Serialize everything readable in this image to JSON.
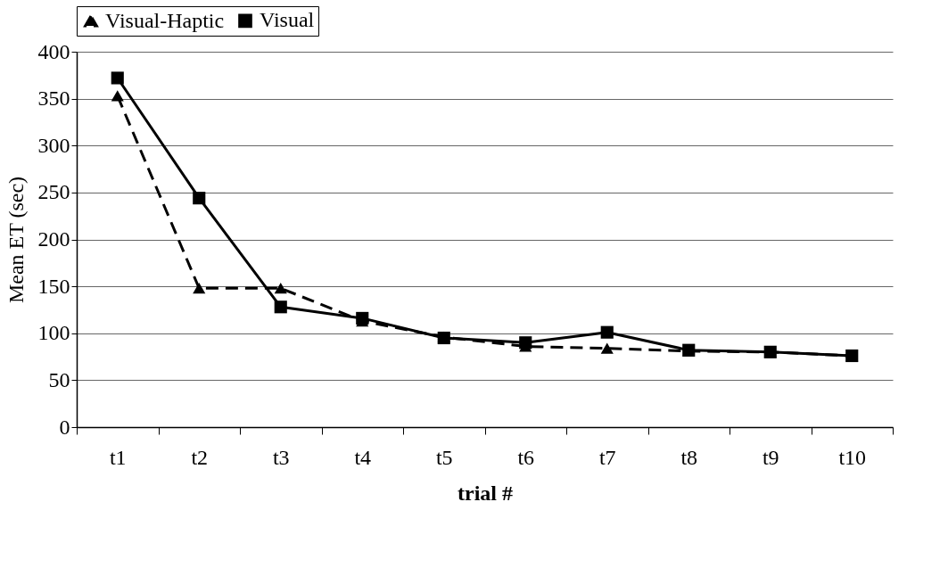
{
  "chart_data": {
    "type": "line",
    "xlabel": "trial #",
    "ylabel": "Mean ET (sec)",
    "categories": [
      "t1",
      "t2",
      "t3",
      "t4",
      "t5",
      "t6",
      "t7",
      "t8",
      "t9",
      "t10"
    ],
    "series": [
      {
        "name": "Visual-Haptic",
        "color": "#000000",
        "marker": "triangle",
        "line_style": "dashed",
        "values": [
          353,
          148,
          148,
          113,
          96,
          86,
          84,
          81,
          80,
          76
        ]
      },
      {
        "name": "Visual",
        "color": "#000000",
        "marker": "square",
        "line_style": "solid",
        "values": [
          372,
          244,
          128,
          116,
          95,
          90,
          101,
          82,
          80,
          76
        ]
      }
    ],
    "ylim": [
      0,
      400
    ],
    "yticks": [
      0,
      50,
      100,
      150,
      200,
      250,
      300,
      350,
      400
    ],
    "grid": "y",
    "legend": "top"
  }
}
